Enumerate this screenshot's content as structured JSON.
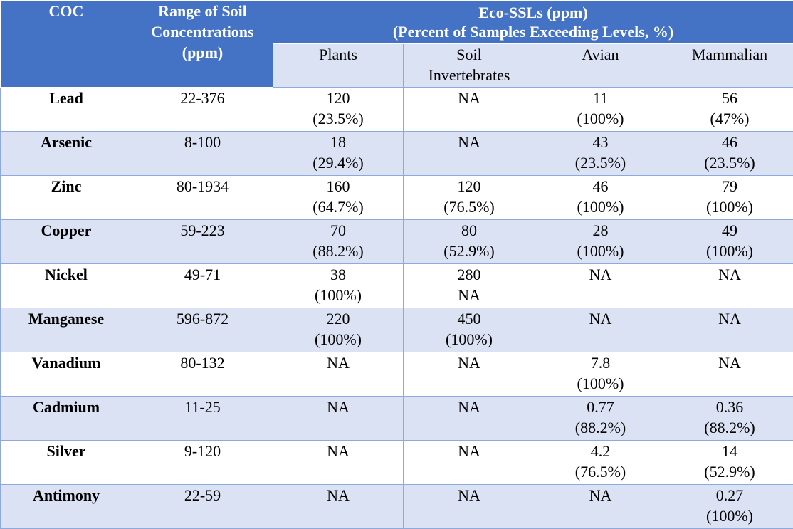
{
  "headers": {
    "coc": "COC",
    "range": [
      "Range of Soil",
      "Concentrations",
      "(ppm)"
    ],
    "eco": [
      "Eco-SSLs (ppm)",
      "(Percent of Samples Exceeding Levels, %)"
    ],
    "sub": {
      "plants": [
        "Plants"
      ],
      "soil_inv": [
        "Soil",
        "Invertebrates"
      ],
      "avian": [
        "Avian"
      ],
      "mammalian": [
        "Mammalian"
      ]
    }
  },
  "rows": [
    {
      "coc": "Lead",
      "range": "22-376",
      "plants": [
        "120",
        "(23.5%)"
      ],
      "soil": [
        "NA",
        ""
      ],
      "avian": [
        "11",
        "(100%)"
      ],
      "mammal": [
        "56",
        "(47%)"
      ]
    },
    {
      "coc": "Arsenic",
      "range": "8-100",
      "plants": [
        "18",
        "(29.4%)"
      ],
      "soil": [
        "NA",
        ""
      ],
      "avian": [
        "43",
        "(23.5%)"
      ],
      "mammal": [
        "46",
        "(23.5%)"
      ]
    },
    {
      "coc": "Zinc",
      "range": "80-1934",
      "plants": [
        "160",
        "(64.7%)"
      ],
      "soil": [
        "120",
        "(76.5%)"
      ],
      "avian": [
        "46",
        "(100%)"
      ],
      "mammal": [
        "79",
        "(100%)"
      ]
    },
    {
      "coc": "Copper",
      "range": "59-223",
      "plants": [
        "70",
        "(88.2%)"
      ],
      "soil": [
        "80",
        "(52.9%)"
      ],
      "avian": [
        "28",
        "(100%)"
      ],
      "mammal": [
        "49",
        "(100%)"
      ]
    },
    {
      "coc": "Nickel",
      "range": "49-71",
      "plants": [
        "38",
        "(100%)"
      ],
      "soil": [
        "280",
        "NA"
      ],
      "avian": [
        "NA",
        ""
      ],
      "mammal": [
        "NA",
        ""
      ]
    },
    {
      "coc": "Manganese",
      "range": "596-872",
      "plants": [
        "220",
        "(100%)"
      ],
      "soil": [
        "450",
        "(100%)"
      ],
      "avian": [
        "NA",
        ""
      ],
      "mammal": [
        "NA",
        ""
      ]
    },
    {
      "coc": "Vanadium",
      "range": "80-132",
      "plants": [
        "NA",
        ""
      ],
      "soil": [
        "NA",
        ""
      ],
      "avian": [
        "7.8",
        "(100%)"
      ],
      "mammal": [
        "NA",
        ""
      ]
    },
    {
      "coc": "Cadmium",
      "range": "11-25",
      "plants": [
        "NA",
        ""
      ],
      "soil": [
        "NA",
        ""
      ],
      "avian": [
        "0.77",
        "(88.2%)"
      ],
      "mammal": [
        "0.36",
        "(88.2%)"
      ]
    },
    {
      "coc": "Silver",
      "range": "9-120",
      "plants": [
        "NA",
        ""
      ],
      "soil": [
        "NA",
        ""
      ],
      "avian": [
        "4.2",
        "(76.5%)"
      ],
      "mammal": [
        "14",
        "(52.9%)"
      ]
    },
    {
      "coc": "Antimony",
      "range": "22-59",
      "plants": [
        "NA",
        ""
      ],
      "soil": [
        "NA",
        ""
      ],
      "avian": [
        "NA",
        ""
      ],
      "mammal": [
        "0.27",
        "(100%)"
      ]
    }
  ]
}
